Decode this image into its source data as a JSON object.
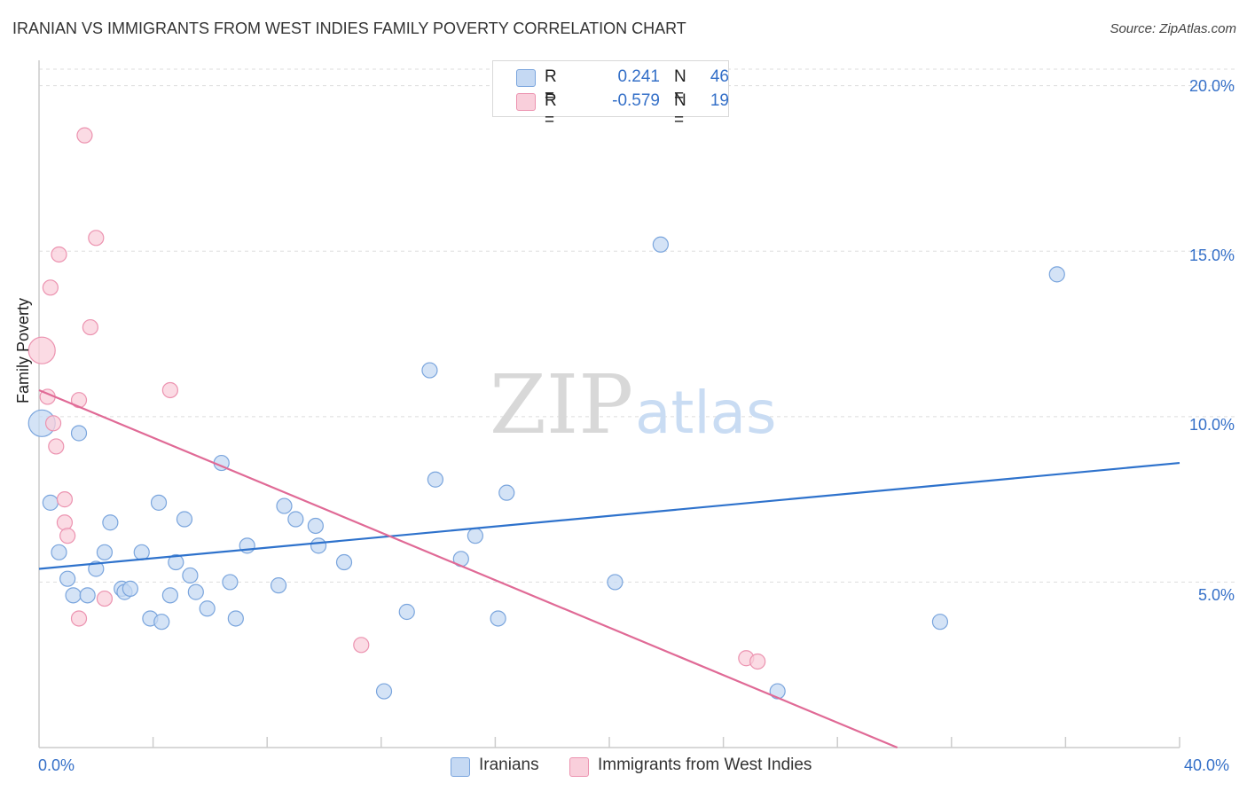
{
  "header": {
    "title": "IRANIAN VS IMMIGRANTS FROM WEST INDIES FAMILY POVERTY CORRELATION CHART",
    "source": "Source: ZipAtlas.com"
  },
  "legend": {
    "rows": [
      {
        "r_label": "R =",
        "r_value": "0.241",
        "n_label": "N =",
        "n_value": "46",
        "color": "#aac8f0"
      },
      {
        "r_label": "R =",
        "r_value": "-0.579",
        "n_label": "N =",
        "n_value": "19",
        "color": "#f7b8cb"
      }
    ]
  },
  "bottom_legend": {
    "series_a": "Iranians",
    "series_b": "Immigrants from West Indies"
  },
  "watermark": {
    "zip": "ZIP",
    "atlas": "atlas"
  },
  "axis": {
    "y_label": "Family Poverty",
    "y_ticks": [
      "20.0%",
      "15.0%",
      "10.0%",
      "5.0%"
    ],
    "x_tick_left": "0.0%",
    "x_tick_right": "40.0%"
  },
  "colors": {
    "blue_fill": "#c5d9f3",
    "blue_stroke": "#7aa5dd",
    "blue_line": "#2e72cc",
    "pink_fill": "#f9cfdb",
    "pink_stroke": "#ec93b0",
    "pink_line": "#e06a96",
    "grid": "#dddddd",
    "axis": "#cccccc"
  },
  "chart_data": {
    "type": "scatter",
    "title": "IRANIAN VS IMMIGRANTS FROM WEST INDIES FAMILY POVERTY CORRELATION CHART",
    "xlabel": "",
    "ylabel": "Family Poverty",
    "xlim": [
      0,
      40
    ],
    "ylim": [
      0,
      20.5
    ],
    "y_ticks": [
      5,
      10,
      15,
      20
    ],
    "series": [
      {
        "name": "Iranians",
        "r": 0.241,
        "n": 46,
        "trend": {
          "x": [
            0,
            40
          ],
          "y": [
            5.4,
            8.6
          ]
        },
        "points": [
          {
            "x": 0.1,
            "y": 9.8,
            "size": "large"
          },
          {
            "x": 0.4,
            "y": 7.4
          },
          {
            "x": 0.7,
            "y": 5.9
          },
          {
            "x": 1.0,
            "y": 5.1
          },
          {
            "x": 1.2,
            "y": 4.6
          },
          {
            "x": 1.4,
            "y": 9.5
          },
          {
            "x": 1.7,
            "y": 4.6
          },
          {
            "x": 2.0,
            "y": 5.4
          },
          {
            "x": 2.3,
            "y": 5.9
          },
          {
            "x": 2.5,
            "y": 6.8
          },
          {
            "x": 2.9,
            "y": 4.8
          },
          {
            "x": 3.0,
            "y": 4.7
          },
          {
            "x": 3.2,
            "y": 4.8
          },
          {
            "x": 3.6,
            "y": 5.9
          },
          {
            "x": 3.9,
            "y": 3.9
          },
          {
            "x": 4.2,
            "y": 7.4
          },
          {
            "x": 4.3,
            "y": 3.8
          },
          {
            "x": 4.6,
            "y": 4.6
          },
          {
            "x": 4.8,
            "y": 5.6
          },
          {
            "x": 5.1,
            "y": 6.9
          },
          {
            "x": 5.3,
            "y": 5.2
          },
          {
            "x": 5.5,
            "y": 4.7
          },
          {
            "x": 5.9,
            "y": 4.2
          },
          {
            "x": 6.4,
            "y": 8.6
          },
          {
            "x": 6.7,
            "y": 5.0
          },
          {
            "x": 6.9,
            "y": 3.9
          },
          {
            "x": 7.3,
            "y": 6.1
          },
          {
            "x": 8.4,
            "y": 4.9
          },
          {
            "x": 8.6,
            "y": 7.3
          },
          {
            "x": 9.0,
            "y": 6.9
          },
          {
            "x": 9.7,
            "y": 6.7
          },
          {
            "x": 9.8,
            "y": 6.1
          },
          {
            "x": 10.7,
            "y": 5.6
          },
          {
            "x": 12.1,
            "y": 1.7
          },
          {
            "x": 12.9,
            "y": 4.1
          },
          {
            "x": 13.7,
            "y": 11.4
          },
          {
            "x": 13.9,
            "y": 8.1
          },
          {
            "x": 14.8,
            "y": 5.7
          },
          {
            "x": 15.3,
            "y": 6.4
          },
          {
            "x": 16.1,
            "y": 3.9
          },
          {
            "x": 16.4,
            "y": 7.7
          },
          {
            "x": 20.2,
            "y": 5.0
          },
          {
            "x": 21.8,
            "y": 15.2
          },
          {
            "x": 25.9,
            "y": 1.7
          },
          {
            "x": 31.6,
            "y": 3.8
          },
          {
            "x": 35.7,
            "y": 14.3
          }
        ]
      },
      {
        "name": "Immigrants from West Indies",
        "r": -0.579,
        "n": 19,
        "trend": {
          "x": [
            0,
            30.1
          ],
          "y": [
            10.8,
            0
          ]
        },
        "points": [
          {
            "x": 0.1,
            "y": 12.0,
            "size": "large"
          },
          {
            "x": 0.3,
            "y": 10.6
          },
          {
            "x": 0.4,
            "y": 13.9
          },
          {
            "x": 0.5,
            "y": 9.8
          },
          {
            "x": 0.6,
            "y": 9.1
          },
          {
            "x": 0.7,
            "y": 14.9
          },
          {
            "x": 0.9,
            "y": 7.5
          },
          {
            "x": 0.9,
            "y": 6.8
          },
          {
            "x": 1.0,
            "y": 6.4
          },
          {
            "x": 1.4,
            "y": 10.5
          },
          {
            "x": 1.4,
            "y": 3.9
          },
          {
            "x": 1.6,
            "y": 18.5
          },
          {
            "x": 1.8,
            "y": 12.7
          },
          {
            "x": 2.0,
            "y": 15.4
          },
          {
            "x": 2.3,
            "y": 4.5
          },
          {
            "x": 4.6,
            "y": 10.8
          },
          {
            "x": 11.3,
            "y": 3.1
          },
          {
            "x": 24.8,
            "y": 2.7
          },
          {
            "x": 25.2,
            "y": 2.6
          }
        ]
      }
    ]
  }
}
